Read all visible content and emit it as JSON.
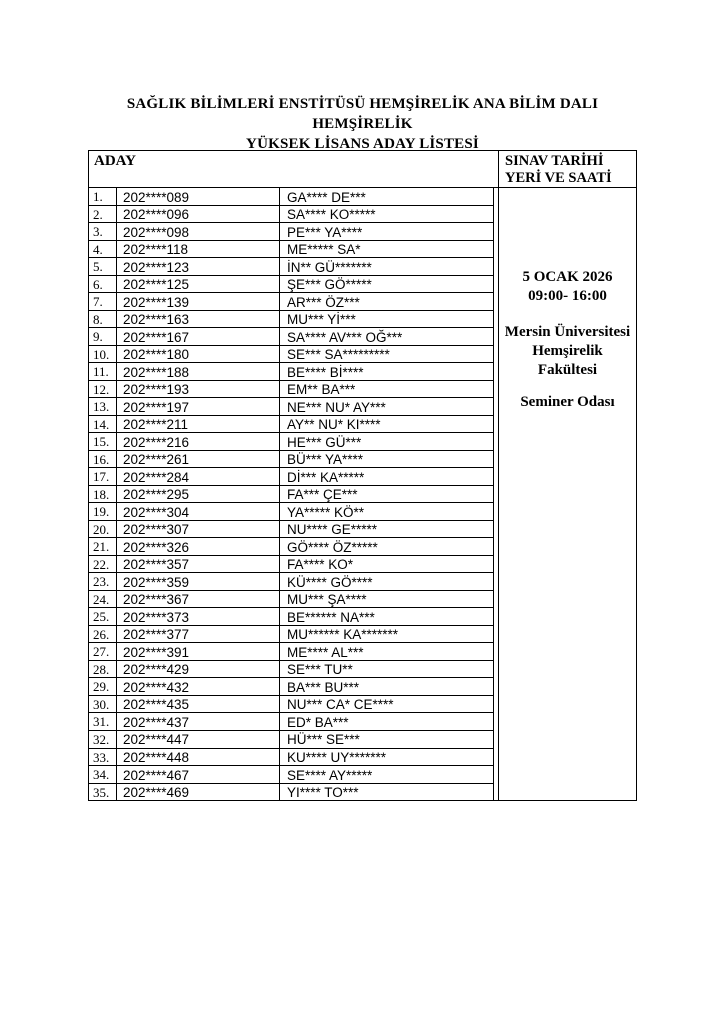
{
  "page": {
    "title_line1": "SAĞLIK BİLİMLERİ ENSTİTÜSÜ HEMŞİRELİK ANA BİLİM DALI HEMŞİRELİK",
    "title_line2": "YÜKSEK LİSANS ADAY LİSTESİ"
  },
  "table": {
    "header_left": "ADAY",
    "header_right_line1": "SINAV TARİHİ",
    "header_right_line2": "YERİ VE SAATİ",
    "rows": [
      {
        "no": "1.",
        "id": "202****089",
        "name": "GA**** DE***"
      },
      {
        "no": "2.",
        "id": "202****096",
        "name": "SA**** KO*****"
      },
      {
        "no": "3.",
        "id": "202****098",
        "name": "PE*** YA****"
      },
      {
        "no": "4.",
        "id": "202****118",
        "name": "ME***** SA*"
      },
      {
        "no": "5.",
        "id": "202****123",
        "name": "İN** GÜ*******"
      },
      {
        "no": "6.",
        "id": "202****125",
        "name": "ŞE*** GÖ*****"
      },
      {
        "no": "7.",
        "id": "202****139",
        "name": "AR*** ÖZ***"
      },
      {
        "no": "8.",
        "id": "202****163",
        "name": "MU*** Yİ***"
      },
      {
        "no": "9.",
        "id": "202****167",
        "name": "SA**** AV*** OĞ***"
      },
      {
        "no": "10.",
        "id": "202****180",
        "name": "SE*** SA*********"
      },
      {
        "no": "11.",
        "id": "202****188",
        "name": "BE**** Bİ****"
      },
      {
        "no": "12.",
        "id": "202****193",
        "name": "EM** BA***"
      },
      {
        "no": "13.",
        "id": "202****197",
        "name": "NE*** NU* AY***"
      },
      {
        "no": "14.",
        "id": "202****211",
        "name": "AY** NU* KI****"
      },
      {
        "no": "15.",
        "id": "202****216",
        "name": "HE*** GÜ***"
      },
      {
        "no": "16.",
        "id": "202****261",
        "name": "BÜ*** YA****"
      },
      {
        "no": "17.",
        "id": "202****284",
        "name": "Dİ*** KA*****"
      },
      {
        "no": "18.",
        "id": "202****295",
        "name": "FA*** ÇE***"
      },
      {
        "no": "19.",
        "id": "202****304",
        "name": "YA***** KÖ**"
      },
      {
        "no": "20.",
        "id": "202****307",
        "name": "NU**** GE*****"
      },
      {
        "no": "21.",
        "id": "202****326",
        "name": "GÖ**** ÖZ*****"
      },
      {
        "no": "22.",
        "id": "202****357",
        "name": "FA**** KO*"
      },
      {
        "no": "23.",
        "id": "202****359",
        "name": "KÜ**** GÖ****"
      },
      {
        "no": "24.",
        "id": "202****367",
        "name": "MU*** ŞA****"
      },
      {
        "no": "25.",
        "id": "202****373",
        "name": "BE****** NA***"
      },
      {
        "no": "26.",
        "id": "202****377",
        "name": "MU****** KA*******"
      },
      {
        "no": "27.",
        "id": "202****391",
        "name": "ME**** AL***"
      },
      {
        "no": "28.",
        "id": "202****429",
        "name": "SE*** TU**"
      },
      {
        "no": "29.",
        "id": "202****432",
        "name": "BA*** BU***"
      },
      {
        "no": "30.",
        "id": "202****435",
        "name": "NU*** CA* CE****"
      },
      {
        "no": "31.",
        "id": "202****437",
        "name": "ED* BA***"
      },
      {
        "no": "32.",
        "id": "202****447",
        "name": "HÜ*** SE***"
      },
      {
        "no": "33.",
        "id": "202****448",
        "name": "KU**** UY*******"
      },
      {
        "no": "34.",
        "id": "202****467",
        "name": "SE**** AY*****"
      },
      {
        "no": "35.",
        "id": "202****469",
        "name": "YI**** TO***"
      }
    ]
  },
  "exam_info": {
    "date": "5 OCAK 2026",
    "time": "09:00- 16:00",
    "venue_line1": "Mersin Üniversitesi",
    "venue_line2": "Hemşirelik",
    "venue_line3": "Fakültesi",
    "room": "Seminer Odası"
  },
  "colors": {
    "background": "#ffffff",
    "text": "#000000",
    "border": "#000000"
  }
}
